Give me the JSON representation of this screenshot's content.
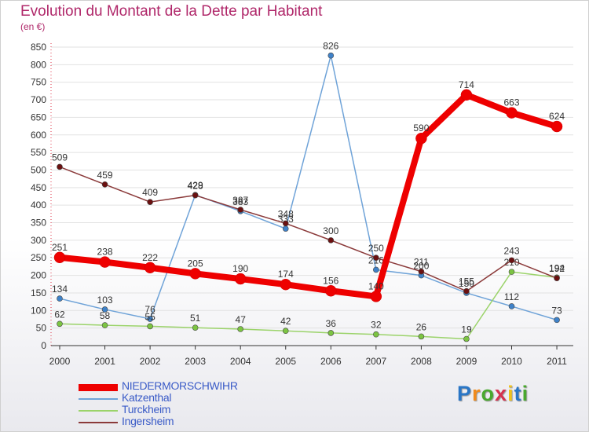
{
  "title": "Evolution du Montant de la Dette par Habitant",
  "subtitle": "(en €)",
  "logo": {
    "letters": [
      "P",
      "r",
      "o",
      "x",
      "i",
      "t",
      "i"
    ],
    "colors": [
      "#2a76c6",
      "#f08a1c",
      "#49a82e",
      "#d6324f",
      "#f0c21c",
      "#2a76c6",
      "#49a82e"
    ]
  },
  "chart_data": {
    "type": "line",
    "title": "Evolution du Montant de la Dette par Habitant",
    "ylabel": "(en €)",
    "xlabel": "",
    "x": [
      "2000",
      "2001",
      "2002",
      "2003",
      "2004",
      "2005",
      "2006",
      "2007",
      "2008",
      "2009",
      "2010",
      "2011"
    ],
    "ylim": [
      0,
      850
    ],
    "yticks": [
      0,
      50,
      100,
      150,
      200,
      250,
      300,
      350,
      400,
      450,
      500,
      550,
      600,
      650,
      700,
      750,
      800,
      850
    ],
    "legend_position": "bottom-left",
    "series": [
      {
        "name": "NIEDERMORSCHWIHR",
        "color": "#ee0000",
        "width": 8,
        "marker": 7,
        "markerColor": "#ee0000",
        "values": [
          251,
          238,
          222,
          205,
          190,
          174,
          156,
          140,
          590,
          714,
          663,
          624
        ],
        "labels": [
          "251",
          "238",
          "222",
          "205",
          "190",
          "174",
          "156",
          "140",
          "590",
          "714",
          "663",
          "624"
        ]
      },
      {
        "name": "Katzenthal",
        "color": "#6fa3d8",
        "width": 1.5,
        "marker": 3.5,
        "markerColor": "#3f82c9",
        "values": [
          134,
          103,
          76,
          429,
          383,
          333,
          826,
          216,
          200,
          150,
          112,
          73
        ],
        "labels": [
          "134",
          "103",
          "76",
          "429",
          "383",
          "333",
          "826",
          "216",
          "200",
          "150",
          "112",
          "73"
        ]
      },
      {
        "name": "Turckheim",
        "color": "#9bd36a",
        "width": 1.5,
        "marker": 3.5,
        "markerColor": "#7cc442",
        "values": [
          62,
          58,
          55,
          51,
          47,
          42,
          36,
          32,
          26,
          19,
          210,
          194
        ],
        "labels": [
          "62",
          "58",
          "55",
          "51",
          "47",
          "42",
          "36",
          "32",
          "26",
          "19",
          "210",
          "194"
        ]
      },
      {
        "name": "Ingersheim",
        "color": "#8b3a3a",
        "width": 1.5,
        "marker": 3.5,
        "markerColor": "#6b1010",
        "values": [
          509,
          459,
          409,
          428,
          387,
          348,
          300,
          250,
          211,
          155,
          243,
          192
        ],
        "labels": [
          "509",
          "459",
          "409",
          "428",
          "387",
          "348",
          "300",
          "250",
          "211",
          "155",
          "243",
          "192"
        ]
      }
    ]
  }
}
